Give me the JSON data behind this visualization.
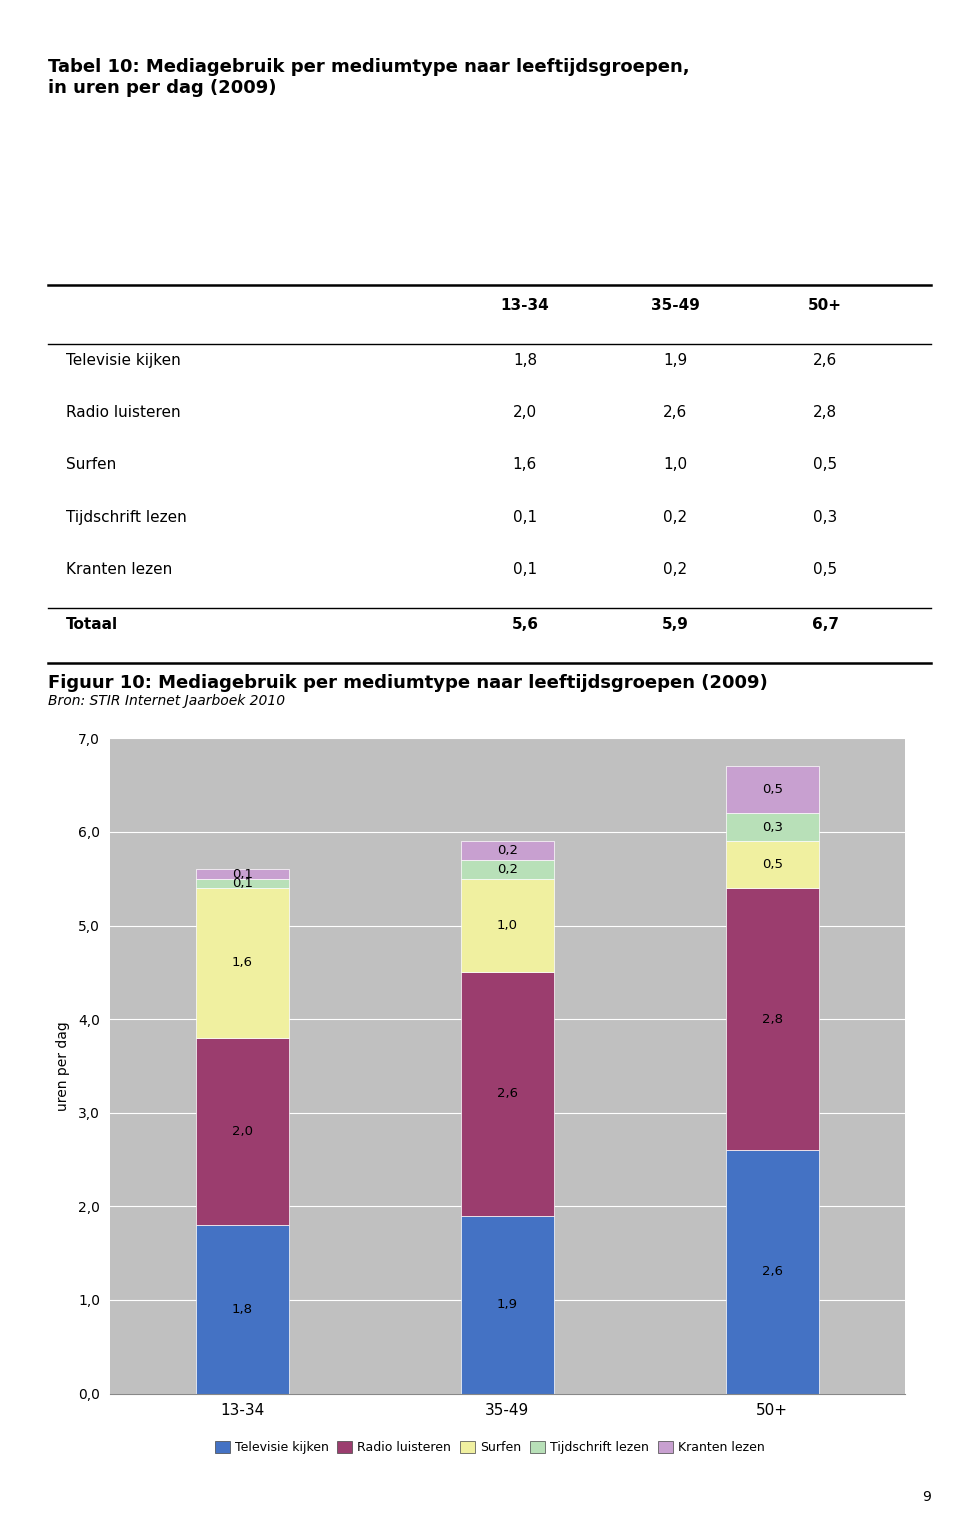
{
  "title_table": "Tabel 10: Mediagebruik per mediumtype naar leeftijdsgroepen,\nin uren per dag (2009)",
  "table_headers": [
    "",
    "13-34",
    "35-49",
    "50+"
  ],
  "table_rows": [
    [
      "Televisie kijken",
      "1,8",
      "1,9",
      "2,6"
    ],
    [
      "Radio luisteren",
      "2,0",
      "2,6",
      "2,8"
    ],
    [
      "Surfen",
      "1,6",
      "1,0",
      "0,5"
    ],
    [
      "Tijdschrift lezen",
      "0,1",
      "0,2",
      "0,3"
    ],
    [
      "Kranten lezen",
      "0,1",
      "0,2",
      "0,5"
    ]
  ],
  "table_totals": [
    "Totaal",
    "5,6",
    "5,9",
    "6,7"
  ],
  "source_text": "Bron: STIR Internet Jaarboek 2010",
  "chart_title": "Figuur 10: Mediagebruik per mediumtype naar leeftijdsgroepen (2009)",
  "categories": [
    "13-34",
    "35-49",
    "50+"
  ],
  "series": {
    "Televisie kijken": [
      1.8,
      1.9,
      2.6
    ],
    "Radio luisteren": [
      2.0,
      2.6,
      2.8
    ],
    "Surfen": [
      1.6,
      1.0,
      0.5
    ],
    "Tijdschrift lezen": [
      0.1,
      0.2,
      0.3
    ],
    "Kranten lezen": [
      0.1,
      0.2,
      0.5
    ]
  },
  "colors": {
    "Televisie kijken": "#4472C4",
    "Radio luisteren": "#9B3D6E",
    "Surfen": "#F0F0A0",
    "Tijdschrift lezen": "#B8E0B8",
    "Kranten lezen": "#C8A0D0"
  },
  "ylabel": "uren per dag",
  "ylim": [
    0.0,
    7.0
  ],
  "yticks": [
    0.0,
    1.0,
    2.0,
    3.0,
    4.0,
    5.0,
    6.0,
    7.0
  ],
  "background_color": "#C0C0C0",
  "page_bg_color": "#FFFFFF",
  "bar_width": 0.35,
  "series_order": [
    "Televisie kijken",
    "Radio luisteren",
    "Surfen",
    "Tijdschrift lezen",
    "Kranten lezen"
  ],
  "label_values": {
    "13-34": {
      "Televisie kijken": "1,8",
      "Radio luisteren": "2,0",
      "Surfen": "1,6",
      "Tijdschrift lezen": "0,1",
      "Kranten lezen": "0,1"
    },
    "35-49": {
      "Televisie kijken": "1,9",
      "Radio luisteren": "2,6",
      "Surfen": "1,0",
      "Tijdschrift lezen": "0,2",
      "Kranten lezen": "0,2"
    },
    "50+": {
      "Televisie kijken": "2,6",
      "Radio luisteren": "2,8",
      "Surfen": "0,5",
      "Tijdschrift lezen": "0,3",
      "Kranten lezen": "0,5"
    }
  },
  "page_number": "9"
}
